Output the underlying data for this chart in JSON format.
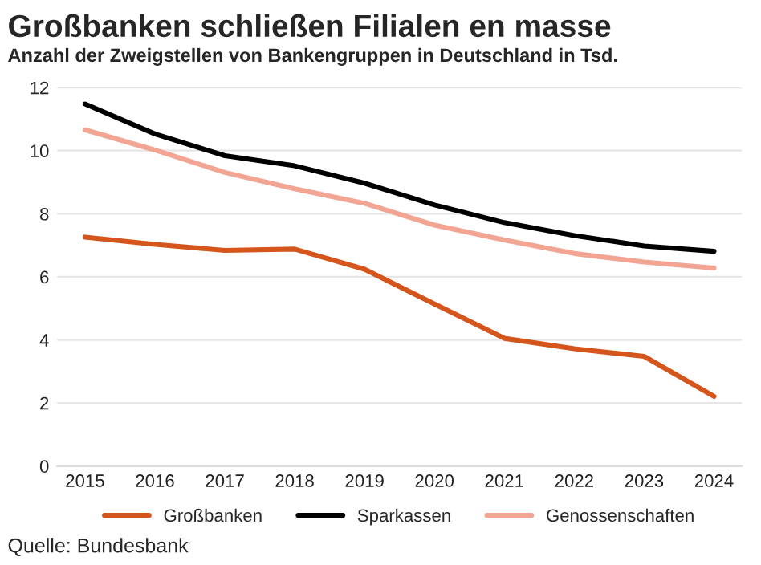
{
  "chart_data": {
    "type": "line",
    "title": "Großbanken schließen Filialen en masse",
    "subtitle": "Anzahl der Zweigstellen von Bankengruppen in Deutschland in Tsd.",
    "categories": [
      "2015",
      "2016",
      "2017",
      "2018",
      "2019",
      "2020",
      "2021",
      "2022",
      "2023",
      "2024"
    ],
    "series": [
      {
        "name": "Großbanken",
        "color": "#d5561c",
        "values": [
          7.26,
          7.03,
          6.84,
          6.88,
          6.24,
          5.14,
          4.05,
          3.72,
          3.48,
          2.21
        ]
      },
      {
        "name": "Sparkassen",
        "color": "#000000",
        "values": [
          11.48,
          10.53,
          9.84,
          9.52,
          8.97,
          8.28,
          7.72,
          7.31,
          6.98,
          6.81
        ]
      },
      {
        "name": "Genossenschaften",
        "color": "#f2a593",
        "values": [
          10.66,
          10.02,
          9.31,
          8.79,
          8.33,
          7.64,
          7.17,
          6.74,
          6.47,
          6.28
        ]
      }
    ],
    "ylim": [
      0,
      12
    ],
    "yticks": [
      0,
      2,
      4,
      6,
      8,
      10,
      12
    ],
    "grid": "y",
    "legend": "bottom",
    "marker": "none",
    "line_style": "solid",
    "annotations": [
      "Quelle: Bundesbank"
    ]
  }
}
